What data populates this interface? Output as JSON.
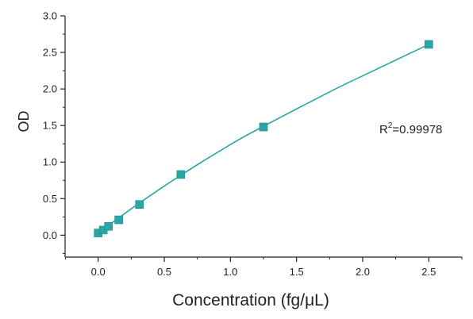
{
  "chart_data": {
    "type": "scatter",
    "title": "",
    "xlabel": "Concentration (fg/μL)",
    "ylabel": "OD",
    "xlim": [
      -0.25,
      2.75
    ],
    "ylim": [
      -0.3,
      3.0
    ],
    "xticks": [
      "0.0",
      "0.5",
      "1.0",
      "1.5",
      "2.0",
      "2.5"
    ],
    "yticks": [
      "0.0",
      "0.5",
      "1.0",
      "1.5",
      "2.0",
      "2.5",
      "3.0"
    ],
    "grid": false,
    "series": [
      {
        "marker": "square",
        "color": "#2aa6a6",
        "x": [
          0,
          0.039,
          0.078,
          0.156,
          0.3125,
          0.625,
          1.25,
          2.5
        ],
        "y": [
          0.03,
          0.07,
          0.12,
          0.21,
          0.42,
          0.83,
          1.48,
          2.61
        ]
      }
    ],
    "fit_line": {
      "color": "#2aa6a6",
      "x": [
        0,
        0.3125,
        0.625,
        1.0,
        1.25,
        1.75,
        2.0,
        2.5
      ],
      "y": [
        0.03,
        0.44,
        0.82,
        1.24,
        1.49,
        1.96,
        2.18,
        2.61
      ]
    },
    "annotation": {
      "text_main": "R",
      "text_sup": "2",
      "text_rest": "=0.99978"
    }
  }
}
